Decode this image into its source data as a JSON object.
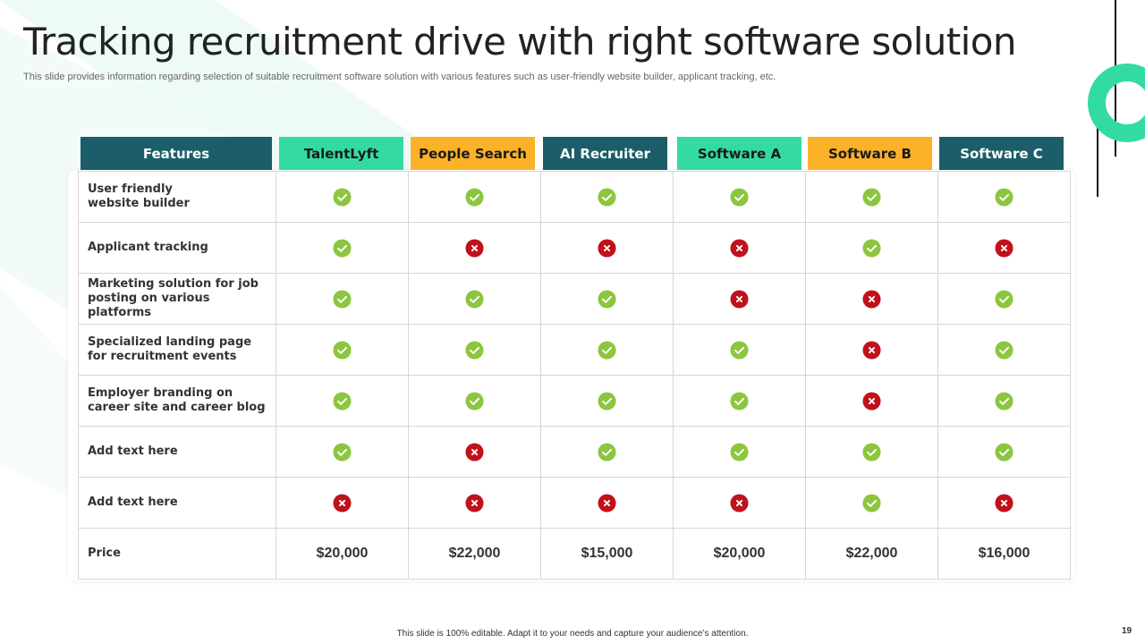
{
  "slide": {
    "title": "Tracking recruitment drive with right software solution",
    "subtitle": "This slide provides information regarding selection of suitable recruitment software solution with various features such as user-friendly website builder, applicant tracking, etc.",
    "footer": "This slide is 100% editable. Adapt it to your needs and capture your audience’s attention.",
    "page_number": "19"
  },
  "colors": {
    "teal": "#1b5e69",
    "mint": "#33dba3",
    "amber": "#fbb128",
    "check": "#8cc63f",
    "cross": "#c0121b"
  },
  "table": {
    "headers": [
      "Features",
      "TalentLyft",
      "People Search",
      "AI Recruiter",
      "Software A",
      "Software B",
      "Software C"
    ],
    "rows": [
      {
        "feature": "User friendly\nwebsite builder",
        "marks": [
          "check",
          "check",
          "check",
          "check",
          "check",
          "check"
        ]
      },
      {
        "feature": "Applicant tracking",
        "marks": [
          "check",
          "cross",
          "cross",
          "cross",
          "check",
          "cross"
        ]
      },
      {
        "feature": "Marketing solution for job\nposting on various platforms",
        "marks": [
          "check",
          "check",
          "check",
          "cross",
          "cross",
          "check"
        ]
      },
      {
        "feature": "Specialized landing page\nfor recruitment events",
        "marks": [
          "check",
          "check",
          "check",
          "check",
          "cross",
          "check"
        ]
      },
      {
        "feature": "Employer branding on\ncareer site and career blog",
        "marks": [
          "check",
          "check",
          "check",
          "check",
          "cross",
          "check"
        ]
      },
      {
        "feature": "Add text here",
        "marks": [
          "check",
          "cross",
          "check",
          "check",
          "check",
          "check"
        ]
      },
      {
        "feature": "Add text here",
        "marks": [
          "cross",
          "cross",
          "cross",
          "cross",
          "check",
          "cross"
        ]
      }
    ],
    "price_label": "Price",
    "prices": [
      "$20,000",
      "$22,000",
      "$15,000",
      "$20,000",
      "$22,000",
      "$16,000"
    ]
  }
}
